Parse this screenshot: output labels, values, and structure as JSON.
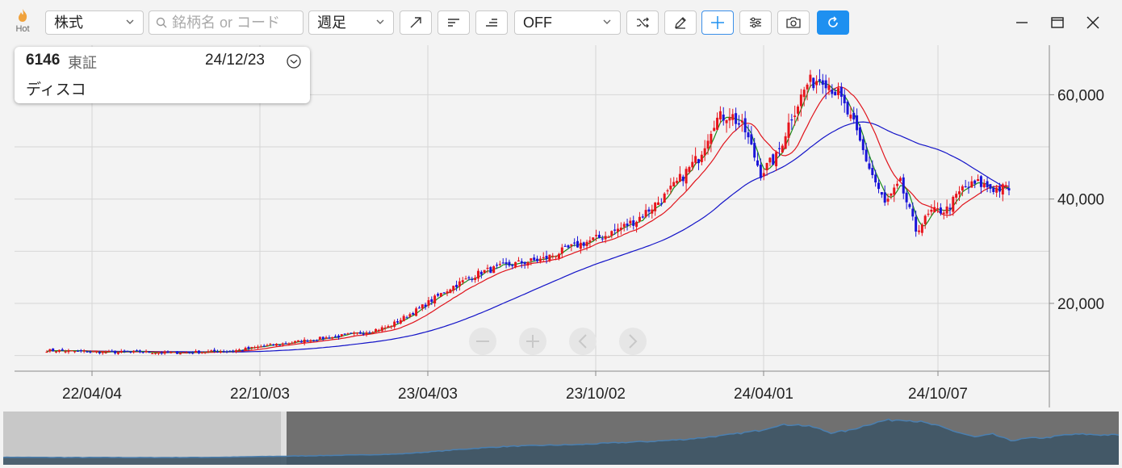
{
  "toolbar": {
    "hot_label": "Hot",
    "market_select": "株式",
    "search_placeholder": "銘柄名 or コード",
    "period_select": "週足",
    "indicator_select": "OFF"
  },
  "info": {
    "code": "6146",
    "market": "東証",
    "date": "24/12/23",
    "name": "ディスコ"
  },
  "colors": {
    "up": "#e8141c",
    "down": "#1a14d8",
    "ma_short": "#1a8c1a",
    "ma_mid": "#e0141c",
    "ma_long": "#1414c8",
    "accent": "#1e90f0"
  },
  "chart_data": {
    "type": "candlestick",
    "x_tick_labels": [
      "22/04/04",
      "22/10/03",
      "23/04/03",
      "23/10/02",
      "24/04/01",
      "24/10/07"
    ],
    "y_tick_labels": [
      "20,000",
      "40,000",
      "60,000"
    ],
    "y_ticks": [
      20000,
      40000,
      60000
    ],
    "ylim": [
      7000,
      69500
    ],
    "grid": true,
    "moving_averages": [
      "short",
      "mid",
      "long"
    ],
    "approx_close_series": [
      [
        0,
        11000
      ],
      [
        10,
        10800
      ],
      [
        20,
        10600
      ],
      [
        30,
        10700
      ],
      [
        40,
        10500
      ],
      [
        50,
        10700
      ],
      [
        60,
        10900
      ],
      [
        70,
        11800
      ],
      [
        80,
        12600
      ],
      [
        90,
        13400
      ],
      [
        100,
        14200
      ],
      [
        110,
        15500
      ],
      [
        120,
        19000
      ],
      [
        130,
        23000
      ],
      [
        140,
        26000
      ],
      [
        150,
        27500
      ],
      [
        160,
        28500
      ],
      [
        170,
        31000
      ],
      [
        180,
        33000
      ],
      [
        190,
        36000
      ],
      [
        200,
        41000
      ],
      [
        210,
        48000
      ],
      [
        215,
        55000
      ],
      [
        220,
        56500
      ],
      [
        225,
        53000
      ],
      [
        230,
        45000
      ],
      [
        235,
        48000
      ],
      [
        240,
        56000
      ],
      [
        245,
        62000
      ],
      [
        250,
        63500
      ],
      [
        255,
        60000
      ],
      [
        260,
        54000
      ],
      [
        265,
        46000
      ],
      [
        270,
        39000
      ],
      [
        275,
        43000
      ],
      [
        280,
        34000
      ],
      [
        285,
        37500
      ],
      [
        290,
        38000
      ],
      [
        295,
        42000
      ],
      [
        300,
        43000
      ],
      [
        305,
        42000
      ],
      [
        310,
        42000
      ]
    ]
  }
}
